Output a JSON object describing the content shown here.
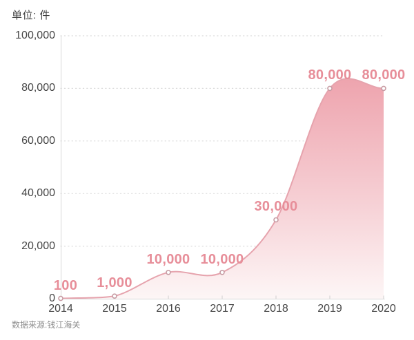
{
  "title": "单位: 件",
  "source": "数据来源:钱江海关",
  "colors": {
    "accent": "#e78e99",
    "line": "#e6a3ad",
    "area_top": "#eea4ae",
    "area_mid": "#f6cfd4",
    "area_bottom": "#fdf6f6",
    "grid": "#dadada",
    "axis": "#d6d6d6",
    "tick": "#cfcfcf",
    "dot_stroke": "#c79ca4",
    "dot_fill": "#ffffff",
    "text_dark": "#3d3d3d",
    "text_axis": "#454545",
    "text_muted": "#8f8f8f"
  },
  "chart_data": {
    "type": "area",
    "title": "单位: 件",
    "unit": "件",
    "categories": [
      "2014",
      "2015",
      "2016",
      "2017",
      "2018",
      "2019",
      "2020"
    ],
    "values": [
      100,
      1000,
      10000,
      10000,
      30000,
      80000,
      80000
    ],
    "point_labels": [
      "100",
      "1,000",
      "10,000",
      "10,000",
      "30,000",
      "80,000",
      "80,000"
    ],
    "xlabel": "",
    "ylabel": "",
    "ylim": [
      0,
      100000
    ],
    "yticks": [
      0,
      20000,
      40000,
      60000,
      80000,
      100000
    ],
    "ytick_labels": [
      "0",
      "20,000",
      "40,000",
      "60,000",
      "80,000",
      "100,000"
    ],
    "grid": true,
    "legend": false,
    "smooth": true,
    "source": "数据来源:钱江海关"
  }
}
